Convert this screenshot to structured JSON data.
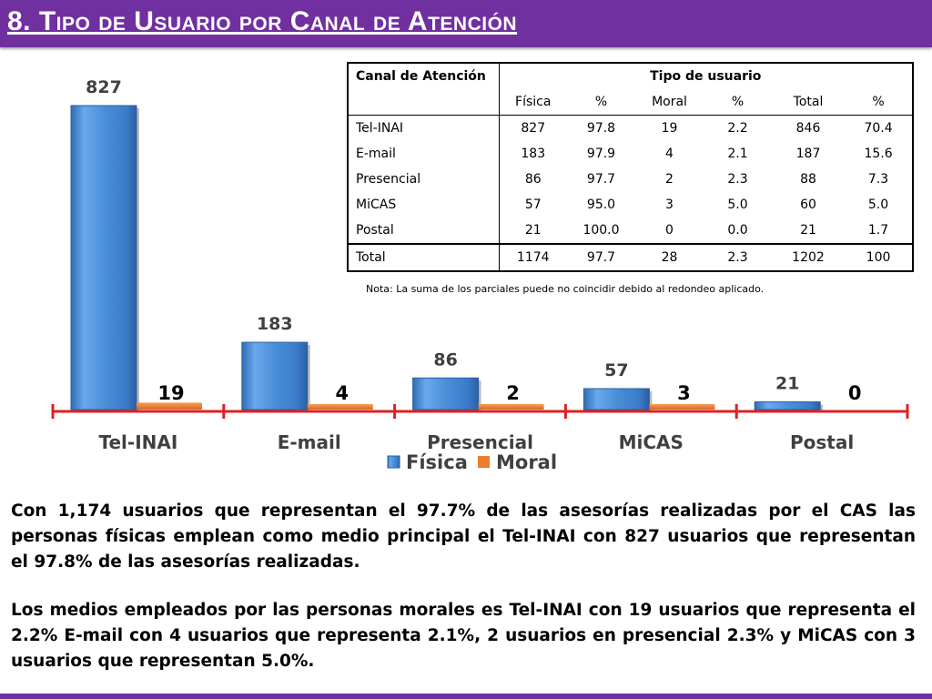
{
  "slide": {
    "title": "8. Tipo de Usuario por Canal de Atención",
    "colors": {
      "purple": "#7030a0",
      "fisica": "#4a90d9",
      "moral": "#ed7d31",
      "axis": "#e02020"
    }
  },
  "chart_data": {
    "type": "bar",
    "categories": [
      "Tel-INAI",
      "E-mail",
      "Presencial",
      "MiCAS",
      "Postal"
    ],
    "series": [
      {
        "name": "Física",
        "values": [
          827,
          183,
          86,
          57,
          21
        ]
      },
      {
        "name": "Moral",
        "values": [
          19,
          4,
          2,
          3,
          0
        ]
      }
    ],
    "ylim": [
      0,
      827
    ],
    "grid": false,
    "legend": "bottom"
  },
  "table": {
    "header": {
      "col1": "Canal de Atención",
      "group": "Tipo de usuario"
    },
    "subheaders": [
      "Física",
      "%",
      "Moral",
      "%",
      "Total",
      "%"
    ],
    "rows": [
      {
        "label": "Tel-INAI",
        "values": [
          "827",
          "97.8",
          "19",
          "2.2",
          "846",
          "70.4"
        ]
      },
      {
        "label": "E-mail",
        "values": [
          "183",
          "97.9",
          "4",
          "2.1",
          "187",
          "15.6"
        ]
      },
      {
        "label": "Presencial",
        "values": [
          "86",
          "97.7",
          "2",
          "2.3",
          "88",
          "7.3"
        ]
      },
      {
        "label": "MiCAS",
        "values": [
          "57",
          "95.0",
          "3",
          "5.0",
          "60",
          "5.0"
        ]
      },
      {
        "label": "Postal",
        "values": [
          "21",
          "100.0",
          "0",
          "0.0",
          "21",
          "1.7"
        ]
      },
      {
        "label": "Total",
        "values": [
          "1174",
          "97.7",
          "28",
          "2.3",
          "1202",
          "100"
        ]
      }
    ],
    "note": "Nota: La suma de los parciales puede no coincidir debido al redondeo aplicado."
  },
  "text": {
    "paragraph1": "Con 1,174 usuarios que representan el 97.7% de las asesorías realizadas por el CAS las personas físicas emplean como medio principal el Tel-INAI con 827 usuarios que representan el 97.8% de las asesorías realizadas.",
    "paragraph2": "Los medios empleados por las personas morales es Tel-INAI con 19 usuarios que representa el 2.2%  E-mail con 4 usuarios que representa 2.1%, 2 usuarios en presencial 2.3% y MiCAS con 3 usuarios que representan 5.0%."
  }
}
